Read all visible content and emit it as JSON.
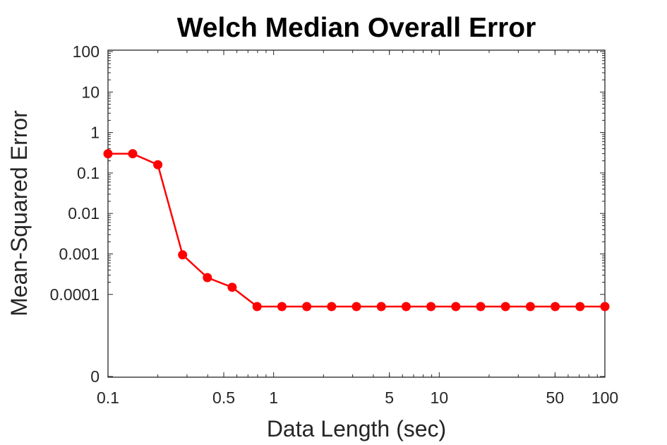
{
  "chart_data": {
    "type": "line",
    "title": "Welch Median Overall Error",
    "xlabel": "Data Length (sec)",
    "ylabel": "Mean-Squared Error",
    "x_scale": "log",
    "y_scale": "log",
    "xlim": [
      0.1,
      100
    ],
    "ylim": [
      0,
      100
    ],
    "xticks": [
      {
        "value": 0.1,
        "label": "0.1"
      },
      {
        "value": 0.5,
        "label": "0.5"
      },
      {
        "value": 1,
        "label": "1"
      },
      {
        "value": 5,
        "label": "5"
      },
      {
        "value": 10,
        "label": "10"
      },
      {
        "value": 50,
        "label": "50"
      },
      {
        "value": 100,
        "label": "100"
      }
    ],
    "yticks": [
      {
        "value": 0,
        "label": "0"
      },
      {
        "value": 0.0001,
        "label": "0.0001"
      },
      {
        "value": 0.001,
        "label": "0.001"
      },
      {
        "value": 0.01,
        "label": "0.01"
      },
      {
        "value": 0.1,
        "label": "0.1"
      },
      {
        "value": 1,
        "label": "1"
      },
      {
        "value": 10,
        "label": "10"
      },
      {
        "value": 100,
        "label": "100"
      }
    ],
    "grid": false,
    "series": [
      {
        "color": "#ff0000",
        "marker": "circle",
        "x": [
          0.1,
          0.141,
          0.2,
          0.282,
          0.398,
          0.562,
          0.794,
          1.122,
          1.585,
          2.239,
          3.162,
          4.467,
          6.31,
          8.913,
          12.59,
          17.78,
          25.12,
          35.48,
          50.12,
          70.79,
          100
        ],
        "y": [
          0.3,
          0.3,
          0.16,
          0.00095,
          0.00026,
          0.00015,
          5e-05,
          5e-05,
          5e-05,
          5e-05,
          5e-05,
          5e-05,
          5e-05,
          5e-05,
          5e-05,
          5e-05,
          5e-05,
          5e-05,
          5e-05,
          5e-05,
          5e-05
        ]
      }
    ]
  }
}
